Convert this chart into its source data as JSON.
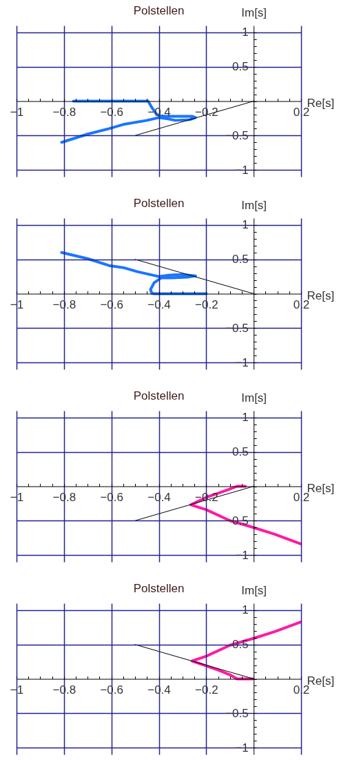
{
  "chart_data": [
    {
      "type": "line",
      "title": "Polstellen",
      "xlabel": "Re[s]",
      "ylabel": "Im[s]",
      "series": [
        {
          "color": "#1a75ff",
          "x": [
            -0.76,
            -0.445,
            -0.43,
            -0.41,
            -0.39,
            -0.33,
            -0.26,
            -0.245,
            -0.27,
            -0.33,
            -0.36,
            -0.4,
            -0.45,
            -0.55,
            -0.61,
            -0.7,
            -0.81
          ],
          "values": [
            0,
            0,
            -0.09,
            -0.19,
            -0.22,
            -0.22,
            -0.22,
            -0.24,
            -0.27,
            -0.28,
            -0.26,
            -0.24,
            -0.28,
            -0.34,
            -0.4,
            -0.48,
            -0.6
          ]
        },
        {
          "color": "#000000",
          "x": [
            -0.5,
            0
          ],
          "values": [
            -0.5,
            0
          ]
        }
      ],
      "xlim": [
        -1,
        0.2
      ],
      "ylim": [
        -1.1,
        1.1
      ],
      "xticks": [
        -1,
        {
          "value": -0.95,
          "label": null
        },
        {
          "value": -0.9,
          "label": null
        },
        {
          "value": -0.85,
          "label": null
        },
        -0.8,
        {
          "value": -0.75,
          "label": null
        },
        {
          "value": -0.7,
          "label": null
        },
        {
          "value": -0.65,
          "label": null
        },
        -0.6,
        {
          "value": -0.55,
          "label": null
        },
        {
          "value": -0.5,
          "label": null
        },
        {
          "value": -0.45,
          "label": null
        },
        -0.4,
        {
          "value": -0.35,
          "label": null
        },
        {
          "value": -0.3,
          "label": null
        },
        {
          "value": -0.25,
          "label": null
        },
        -0.2,
        {
          "value": -0.15,
          "label": null
        },
        {
          "value": -0.1,
          "label": null
        },
        {
          "value": -0.05,
          "label": null
        },
        {
          "value": 0,
          "label": null
        },
        {
          "value": 0.05,
          "label": null
        },
        {
          "value": 0.1,
          "label": null
        },
        {
          "value": 0.15,
          "label": null
        },
        0.2
      ],
      "yticks": [
        -1,
        {
          "value": -0.9,
          "label": null
        },
        {
          "value": -0.8,
          "label": null
        },
        {
          "value": -0.7,
          "label": null
        },
        {
          "value": -0.6,
          "label": null
        },
        -0.5,
        {
          "value": -0.4,
          "label": null
        },
        {
          "value": -0.3,
          "label": null
        },
        {
          "value": -0.2,
          "label": null
        },
        {
          "value": -0.1,
          "label": null
        },
        {
          "value": 0,
          "label": null
        },
        {
          "value": 0.1,
          "label": null
        },
        {
          "value": 0.2,
          "label": null
        },
        {
          "value": 0.3,
          "label": null
        },
        {
          "value": 0.4,
          "label": null
        },
        0.5,
        {
          "value": 0.6,
          "label": null
        },
        {
          "value": 0.7,
          "label": null
        },
        {
          "value": 0.8,
          "label": null
        },
        {
          "value": 0.9,
          "label": null
        },
        1
      ],
      "grid": true
    },
    {
      "type": "line",
      "title": "Polstellen",
      "xlabel": "Re[s]",
      "ylabel": "Im[s]",
      "series": [
        {
          "color": "#1a75ff",
          "x": [
            -0.2,
            -0.42,
            -0.43,
            -0.435,
            -0.42,
            -0.39,
            -0.35,
            -0.28,
            -0.245,
            -0.3,
            -0.36,
            -0.4,
            -0.49,
            -0.55,
            -0.61,
            -0.7,
            -0.81
          ],
          "values": [
            0,
            0,
            0.01,
            0.06,
            0.16,
            0.23,
            0.23,
            0.24,
            0.26,
            0.28,
            0.27,
            0.25,
            0.32,
            0.38,
            0.41,
            0.51,
            0.6
          ]
        },
        {
          "color": "#000000",
          "x": [
            -0.5,
            0
          ],
          "values": [
            0.5,
            0
          ]
        }
      ],
      "xlim": [
        -1,
        0.2
      ],
      "ylim": [
        -1.1,
        1.1
      ],
      "xticks": [
        -1,
        {
          "value": -0.95,
          "label": null
        },
        {
          "value": -0.9,
          "label": null
        },
        {
          "value": -0.85,
          "label": null
        },
        -0.8,
        {
          "value": -0.75,
          "label": null
        },
        {
          "value": -0.7,
          "label": null
        },
        {
          "value": -0.65,
          "label": null
        },
        -0.6,
        {
          "value": -0.55,
          "label": null
        },
        {
          "value": -0.5,
          "label": null
        },
        {
          "value": -0.45,
          "label": null
        },
        -0.4,
        {
          "value": -0.35,
          "label": null
        },
        {
          "value": -0.3,
          "label": null
        },
        {
          "value": -0.25,
          "label": null
        },
        -0.2,
        {
          "value": -0.15,
          "label": null
        },
        {
          "value": -0.1,
          "label": null
        },
        {
          "value": -0.05,
          "label": null
        },
        {
          "value": 0,
          "label": null
        },
        {
          "value": 0.05,
          "label": null
        },
        {
          "value": 0.1,
          "label": null
        },
        {
          "value": 0.15,
          "label": null
        },
        0.2
      ],
      "yticks": [
        -1,
        {
          "value": -0.9,
          "label": null
        },
        {
          "value": -0.8,
          "label": null
        },
        {
          "value": -0.7,
          "label": null
        },
        {
          "value": -0.6,
          "label": null
        },
        -0.5,
        {
          "value": -0.4,
          "label": null
        },
        {
          "value": -0.3,
          "label": null
        },
        {
          "value": -0.2,
          "label": null
        },
        {
          "value": -0.1,
          "label": null
        },
        {
          "value": 0,
          "label": null
        },
        {
          "value": 0.1,
          "label": null
        },
        {
          "value": 0.2,
          "label": null
        },
        {
          "value": 0.3,
          "label": null
        },
        {
          "value": 0.4,
          "label": null
        },
        0.5,
        {
          "value": 0.6,
          "label": null
        },
        {
          "value": 0.7,
          "label": null
        },
        {
          "value": 0.8,
          "label": null
        },
        {
          "value": 0.9,
          "label": null
        },
        1
      ],
      "grid": true
    },
    {
      "type": "line",
      "title": "Polstellen",
      "xlabel": "Re[s]",
      "ylabel": "Im[s]",
      "series": [
        {
          "color": "#ff1aa3",
          "x": [
            -0.035,
            -0.07,
            -0.1,
            -0.14,
            -0.2,
            -0.265,
            -0.2,
            -0.1,
            0,
            0.09,
            0.2
          ],
          "values": [
            0,
            0,
            -0.04,
            -0.09,
            -0.16,
            -0.27,
            -0.34,
            -0.5,
            -0.6,
            -0.7,
            -0.84
          ]
        },
        {
          "color": "#000000",
          "x": [
            -0.5,
            0
          ],
          "values": [
            -0.5,
            0
          ]
        }
      ],
      "xlim": [
        -1,
        0.2
      ],
      "ylim": [
        -1.1,
        1.1
      ],
      "xticks": [
        -1,
        {
          "value": -0.95,
          "label": null
        },
        {
          "value": -0.9,
          "label": null
        },
        {
          "value": -0.85,
          "label": null
        },
        -0.8,
        {
          "value": -0.75,
          "label": null
        },
        {
          "value": -0.7,
          "label": null
        },
        {
          "value": -0.65,
          "label": null
        },
        -0.6,
        {
          "value": -0.55,
          "label": null
        },
        {
          "value": -0.5,
          "label": null
        },
        {
          "value": -0.45,
          "label": null
        },
        -0.4,
        {
          "value": -0.35,
          "label": null
        },
        {
          "value": -0.3,
          "label": null
        },
        {
          "value": -0.25,
          "label": null
        },
        -0.2,
        {
          "value": -0.15,
          "label": null
        },
        {
          "value": -0.1,
          "label": null
        },
        {
          "value": -0.05,
          "label": null
        },
        {
          "value": 0,
          "label": null
        },
        {
          "value": 0.05,
          "label": null
        },
        {
          "value": 0.1,
          "label": null
        },
        {
          "value": 0.15,
          "label": null
        },
        0.2
      ],
      "yticks": [
        -1,
        {
          "value": -0.9,
          "label": null
        },
        {
          "value": -0.8,
          "label": null
        },
        {
          "value": -0.7,
          "label": null
        },
        {
          "value": -0.6,
          "label": null
        },
        -0.5,
        {
          "value": -0.4,
          "label": null
        },
        {
          "value": -0.3,
          "label": null
        },
        {
          "value": -0.2,
          "label": null
        },
        {
          "value": -0.1,
          "label": null
        },
        {
          "value": 0,
          "label": null
        },
        {
          "value": 0.1,
          "label": null
        },
        {
          "value": 0.2,
          "label": null
        },
        {
          "value": 0.3,
          "label": null
        },
        {
          "value": 0.4,
          "label": null
        },
        0.5,
        {
          "value": 0.6,
          "label": null
        },
        {
          "value": 0.7,
          "label": null
        },
        {
          "value": 0.8,
          "label": null
        },
        {
          "value": 0.9,
          "label": null
        },
        1
      ],
      "grid": true
    },
    {
      "type": "line",
      "title": "Polstellen",
      "xlabel": "Re[s]",
      "ylabel": "Im[s]",
      "series": [
        {
          "color": "#ff1aa3",
          "x": [
            -0.005,
            -0.07,
            -0.1,
            -0.15,
            -0.2,
            -0.26,
            -0.2,
            -0.1,
            0,
            0.09,
            0.2
          ],
          "values": [
            0,
            0,
            0.06,
            0.13,
            0.19,
            0.26,
            0.33,
            0.49,
            0.59,
            0.69,
            0.83
          ]
        },
        {
          "color": "#000000",
          "x": [
            -0.5,
            0
          ],
          "values": [
            0.5,
            0
          ]
        }
      ],
      "xlim": [
        -1,
        0.2
      ],
      "ylim": [
        -1.1,
        1.1
      ],
      "xticks": [
        -1,
        {
          "value": -0.95,
          "label": null
        },
        {
          "value": -0.9,
          "label": null
        },
        {
          "value": -0.85,
          "label": null
        },
        -0.8,
        {
          "value": -0.75,
          "label": null
        },
        {
          "value": -0.7,
          "label": null
        },
        {
          "value": -0.65,
          "label": null
        },
        -0.6,
        {
          "value": -0.55,
          "label": null
        },
        {
          "value": -0.5,
          "label": null
        },
        {
          "value": -0.45,
          "label": null
        },
        -0.4,
        {
          "value": -0.35,
          "label": null
        },
        {
          "value": -0.3,
          "label": null
        },
        {
          "value": -0.25,
          "label": null
        },
        -0.2,
        {
          "value": -0.15,
          "label": null
        },
        {
          "value": -0.1,
          "label": null
        },
        {
          "value": -0.05,
          "label": null
        },
        {
          "value": 0,
          "label": null
        },
        {
          "value": 0.05,
          "label": null
        },
        {
          "value": 0.1,
          "label": null
        },
        {
          "value": 0.15,
          "label": null
        },
        0.2
      ],
      "yticks": [
        -1,
        {
          "value": -0.9,
          "label": null
        },
        {
          "value": -0.8,
          "label": null
        },
        {
          "value": -0.7,
          "label": null
        },
        {
          "value": -0.6,
          "label": null
        },
        -0.5,
        {
          "value": -0.4,
          "label": null
        },
        {
          "value": -0.3,
          "label": null
        },
        {
          "value": -0.2,
          "label": null
        },
        {
          "value": -0.1,
          "label": null
        },
        {
          "value": 0,
          "label": null
        },
        {
          "value": 0.1,
          "label": null
        },
        {
          "value": 0.2,
          "label": null
        },
        {
          "value": 0.3,
          "label": null
        },
        {
          "value": 0.4,
          "label": null
        },
        0.5,
        {
          "value": 0.6,
          "label": null
        },
        {
          "value": 0.7,
          "label": null
        },
        {
          "value": 0.8,
          "label": null
        },
        {
          "value": 0.9,
          "label": null
        },
        1
      ],
      "grid": true
    }
  ]
}
